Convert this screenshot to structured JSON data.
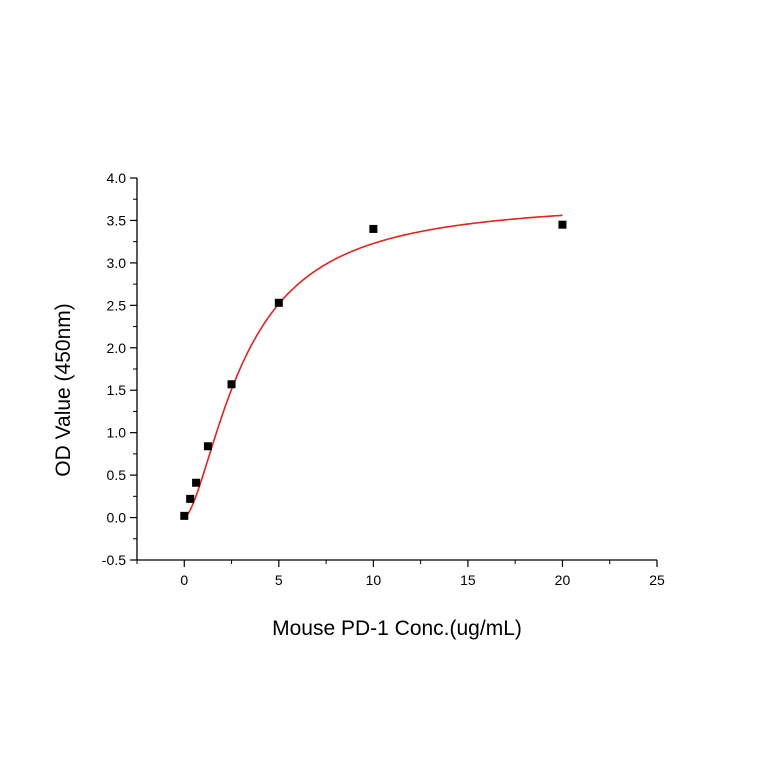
{
  "chart_data": {
    "type": "scatter",
    "title": "",
    "xlabel": "Mouse PD-1 Conc.(ug/mL)",
    "ylabel": "OD Value (450nm)",
    "xlim": [
      -2.5,
      25
    ],
    "ylim": [
      -0.5,
      4.0
    ],
    "x_ticks": [
      0,
      5,
      10,
      15,
      20,
      25
    ],
    "x_tick_labels": [
      "0",
      "5",
      "10",
      "15",
      "20",
      "25"
    ],
    "y_ticks": [
      -0.5,
      0.0,
      0.5,
      1.0,
      1.5,
      2.0,
      2.5,
      3.0,
      3.5,
      4.0
    ],
    "y_tick_labels": [
      "-0.5",
      "0.0",
      "0.5",
      "1.0",
      "1.5",
      "2.0",
      "2.5",
      "3.0",
      "3.5",
      "4.0"
    ],
    "grid": false,
    "legend": "none",
    "series": [
      {
        "kind": "scatter",
        "marker": "square",
        "color": "#000000",
        "x": [
          0,
          0.3125,
          0.625,
          1.25,
          2.5,
          5,
          10,
          20
        ],
        "y": [
          0.02,
          0.22,
          0.41,
          0.84,
          1.57,
          2.53,
          3.4,
          3.45
        ]
      },
      {
        "kind": "fit_line",
        "color": "#e8221c",
        "model": "4PL",
        "params": {
          "bottom": 0.0,
          "top": 3.75,
          "ec50": 3.2,
          "hill": 1.6
        },
        "x_range": [
          0.05,
          20
        ]
      }
    ]
  }
}
